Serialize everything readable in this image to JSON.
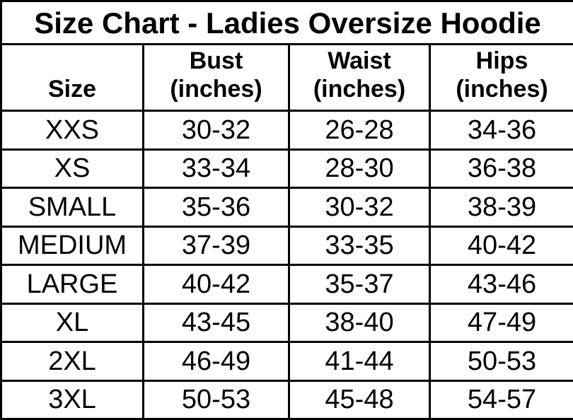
{
  "title": "Size Chart - Ladies Oversize Hoodie",
  "chart_data": {
    "type": "table",
    "title": "Size Chart - Ladies Oversize Hoodie",
    "columns": [
      {
        "key": "size",
        "label": "Size",
        "sublabel": ""
      },
      {
        "key": "bust",
        "label": "Bust",
        "sublabel": "(inches)"
      },
      {
        "key": "waist",
        "label": "Waist",
        "sublabel": "(inches)"
      },
      {
        "key": "hips",
        "label": "Hips",
        "sublabel": "(inches)"
      }
    ],
    "rows": [
      {
        "cells": [
          "XXS",
          "30-32",
          "26-28",
          "34-36"
        ]
      },
      {
        "cells": [
          "XS",
          "33-34",
          "28-30",
          "36-38"
        ]
      },
      {
        "cells": [
          "SMALL",
          "35-36",
          "30-32",
          "38-39"
        ]
      },
      {
        "cells": [
          "MEDIUM",
          "37-39",
          "33-35",
          "40-42"
        ]
      },
      {
        "cells": [
          "LARGE",
          "40-42",
          "35-37",
          "43-46"
        ]
      },
      {
        "cells": [
          "XL",
          "43-45",
          "38-40",
          "47-49"
        ]
      },
      {
        "cells": [
          "2XL",
          "46-49",
          "41-44",
          "50-53"
        ]
      },
      {
        "cells": [
          "3XL",
          "50-53",
          "45-48",
          "54-57"
        ]
      }
    ]
  },
  "colors": {
    "border": "#000000",
    "background": "#ffffff",
    "text": "#000000"
  }
}
